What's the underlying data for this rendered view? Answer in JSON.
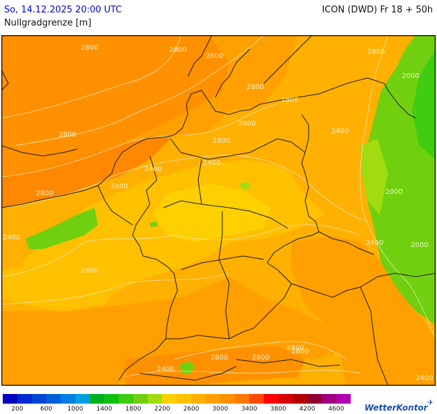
{
  "header": {
    "datetime": "So, 14.12.2025 20:00 UTC",
    "model": "ICON (DWD) Fr 18 + 50h",
    "parameter": "Nullgradgrenze [m]"
  },
  "colors": {
    "frame": "#000000",
    "borders": "#1a1a1a",
    "isolines": "#e6e6b0"
  },
  "legend": {
    "colors": [
      "#0000c0",
      "#0028d0",
      "#0044d8",
      "#0060dc",
      "#0080e0",
      "#00a0e0",
      "#00b020",
      "#10c010",
      "#40cc10",
      "#70d010",
      "#a0dc10",
      "#ffd000",
      "#ffc000",
      "#ffb000",
      "#ffa000",
      "#ff9000",
      "#ff7800",
      "#ff4800",
      "#ff0000",
      "#d80000",
      "#b00000",
      "#900030",
      "#a00080",
      "#b000b0"
    ],
    "ticks": [
      "200",
      "600",
      "1000",
      "1400",
      "1800",
      "2200",
      "2600",
      "3000",
      "3400",
      "3800",
      "4200",
      "4600"
    ]
  },
  "isoline_labels": [
    "2800",
    "2800",
    "2800",
    "2800",
    "2800",
    "2800",
    "2800",
    "2800",
    "2800",
    "2800",
    "2800",
    "2800",
    "2800",
    "2800",
    "2400",
    "2400",
    "2400",
    "2400",
    "2400",
    "2400",
    "2400",
    "2400",
    "2400",
    "2000",
    "2000",
    "2000"
  ],
  "brand": "WetterKontor"
}
